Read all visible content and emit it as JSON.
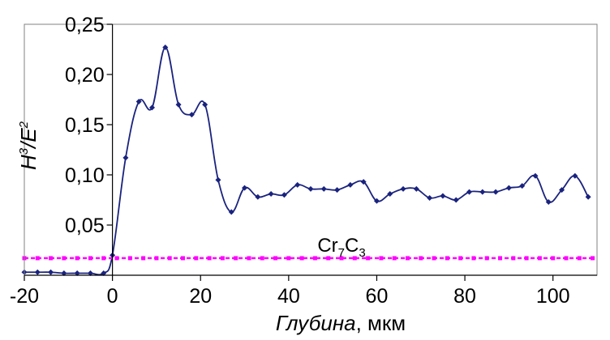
{
  "chart_data": {
    "type": "line",
    "ylabel": {
      "base": "H",
      "sup1": "3",
      "sep": "/",
      "base2": "E",
      "sup2": "2"
    },
    "xlabel": {
      "italic": "Глубина",
      "unit": ", мкм"
    },
    "xlim": [
      -20,
      110
    ],
    "ylim": [
      0,
      0.25
    ],
    "xticks": [
      -20,
      0,
      20,
      40,
      60,
      80,
      100
    ],
    "xtick_labels": [
      "-20",
      "0",
      "20",
      "40",
      "60",
      "80",
      "100"
    ],
    "yticks": [
      0.05,
      0.1,
      0.15,
      0.2,
      0.25
    ],
    "ytick_labels": [
      "0,05",
      "0,10",
      "0,15",
      "0,20",
      "0,25"
    ],
    "grid": false,
    "series": [
      {
        "color": "#1a237e",
        "marker": "diamond",
        "x": [
          -20,
          -17,
          -14,
          -11,
          -8,
          -5,
          -2,
          0,
          3,
          6,
          9,
          12,
          15,
          18,
          21,
          24,
          27,
          30,
          33,
          36,
          39,
          42,
          45,
          48,
          51,
          54,
          57,
          60,
          63,
          66,
          69,
          72,
          75,
          78,
          81,
          84,
          87,
          90,
          93,
          96,
          99,
          102,
          105,
          108
        ],
        "y": [
          0.003,
          0.003,
          0.003,
          0.002,
          0.002,
          0.002,
          0.002,
          0.02,
          0.117,
          0.173,
          0.167,
          0.227,
          0.17,
          0.16,
          0.17,
          0.095,
          0.063,
          0.087,
          0.078,
          0.081,
          0.08,
          0.09,
          0.086,
          0.086,
          0.085,
          0.09,
          0.093,
          0.074,
          0.081,
          0.086,
          0.086,
          0.077,
          0.079,
          0.075,
          0.083,
          0.083,
          0.083,
          0.087,
          0.089,
          0.099,
          0.073,
          0.085,
          0.099,
          0.078
        ]
      },
      {
        "color": "#ff00ff",
        "marker": "square",
        "style": "dashed",
        "constant": 0.017,
        "annotation": {
          "text": "Cr",
          "sub1": "7",
          "mid": "C",
          "sub2": "3",
          "x": 52,
          "y": 0.03
        }
      }
    ]
  }
}
